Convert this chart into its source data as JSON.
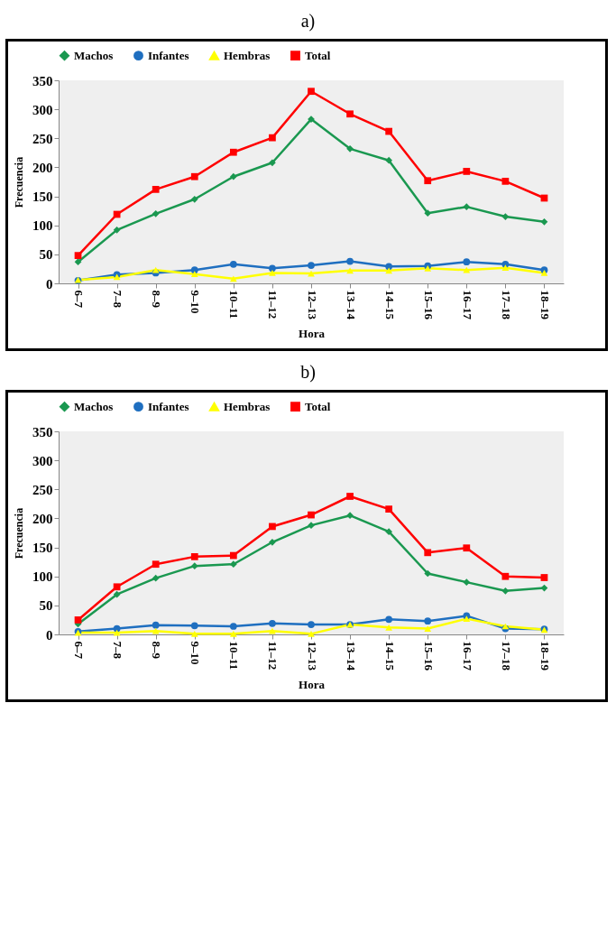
{
  "chart_data": [
    {
      "type": "line",
      "title": "a)",
      "xlabel": "Hora",
      "ylabel": "Frecuencia",
      "categories": [
        "6–7",
        "7–8",
        "8–9",
        "9–10",
        "10–11",
        "11–12",
        "12–13",
        "13–14",
        "14–15",
        "15–16",
        "16–17",
        "17–18",
        "18–19"
      ],
      "ylim": [
        0,
        350
      ],
      "yticks": [
        0,
        50,
        100,
        150,
        200,
        250,
        300,
        350
      ],
      "grid": false,
      "legend": "top",
      "series": [
        {
          "name": "Machos",
          "color": "#1a9850",
          "marker": "diamond",
          "values": [
            37,
            92,
            120,
            145,
            184,
            208,
            283,
            232,
            212,
            121,
            132,
            115,
            106
          ]
        },
        {
          "name": "Infantes",
          "color": "#1f6fc0",
          "marker": "circle",
          "values": [
            5,
            15,
            18,
            23,
            33,
            26,
            31,
            38,
            29,
            30,
            37,
            33,
            23
          ]
        },
        {
          "name": "Hembras",
          "color": "#ffff00",
          "marker": "triangle",
          "values": [
            6,
            11,
            23,
            16,
            8,
            18,
            17,
            22,
            22,
            26,
            23,
            27,
            18
          ]
        },
        {
          "name": "Total",
          "color": "#ff0000",
          "marker": "square",
          "values": [
            48,
            119,
            162,
            184,
            226,
            251,
            331,
            292,
            262,
            177,
            193,
            176,
            147
          ]
        }
      ]
    },
    {
      "type": "line",
      "title": "b)",
      "xlabel": "Hora",
      "ylabel": "Frecuencia",
      "categories": [
        "6–7",
        "7–8",
        "8–9",
        "9–10",
        "10–11",
        "11–12",
        "12–13",
        "13–14",
        "14–15",
        "15–16",
        "16–17",
        "17–18",
        "18–19"
      ],
      "ylim": [
        0,
        350
      ],
      "yticks": [
        0,
        50,
        100,
        150,
        200,
        250,
        300,
        350
      ],
      "grid": false,
      "legend": "top",
      "series": [
        {
          "name": "Machos",
          "color": "#1a9850",
          "marker": "diamond",
          "values": [
            18,
            69,
            97,
            118,
            121,
            159,
            188,
            205,
            177,
            105,
            90,
            75,
            80
          ]
        },
        {
          "name": "Infantes",
          "color": "#1f6fc0",
          "marker": "circle",
          "values": [
            5,
            10,
            16,
            15,
            14,
            19,
            17,
            17,
            26,
            23,
            32,
            10,
            9
          ]
        },
        {
          "name": "Hembras",
          "color": "#ffff00",
          "marker": "triangle",
          "values": [
            3,
            3,
            6,
            1,
            1,
            6,
            1,
            17,
            12,
            10,
            27,
            14,
            8
          ]
        },
        {
          "name": "Total",
          "color": "#ff0000",
          "marker": "square",
          "values": [
            25,
            82,
            121,
            134,
            136,
            186,
            206,
            238,
            216,
            141,
            149,
            100,
            98
          ]
        }
      ]
    }
  ]
}
